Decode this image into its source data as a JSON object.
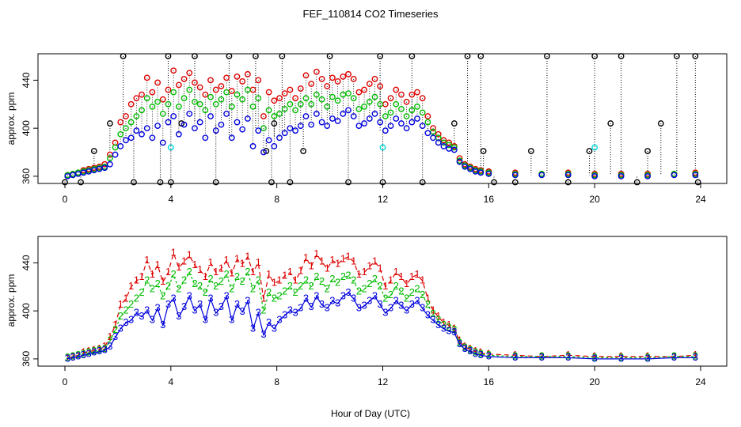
{
  "chart_data": [
    {
      "type": "scatter",
      "title": "FEF_110814  CO2 Timeseries",
      "xlabel": "",
      "ylabel": "approx. ppm",
      "xlim": [
        0,
        24
      ],
      "ylim": [
        354,
        462
      ],
      "xticks": [
        "0",
        "4",
        "8",
        "12",
        "16",
        "20",
        "24"
      ],
      "yticks": [
        "360",
        "400",
        "440"
      ],
      "grid": false,
      "series_colors": [
        "#dd0000",
        "#00bb00",
        "#0000dd"
      ],
      "spike_color": "#000000",
      "cyan_color": "#00dddd",
      "series": [
        {
          "key": "r",
          "x": [
            0.1,
            0.3,
            0.5,
            0.7,
            0.9,
            1.1,
            1.3,
            1.5,
            1.7,
            1.9,
            2.1,
            2.3,
            2.5,
            2.7,
            2.9,
            3.1,
            3.3,
            3.5,
            3.7,
            3.9,
            4.1,
            4.3,
            4.5,
            4.7,
            4.9,
            5.1,
            5.3,
            5.5,
            5.7,
            5.9,
            6.1,
            6.3,
            6.5,
            6.7,
            6.9,
            7.1,
            7.3,
            7.5,
            7.7,
            7.9,
            8.1,
            8.3,
            8.5,
            8.7,
            8.9,
            9.1,
            9.3,
            9.5,
            9.7,
            9.9,
            10.1,
            10.3,
            10.5,
            10.7,
            10.9,
            11.1,
            11.3,
            11.5,
            11.7,
            11.9,
            12.1,
            12.3,
            12.5,
            12.7,
            12.9,
            13.1,
            13.3,
            13.5,
            13.7,
            13.9,
            14.1,
            14.3,
            14.5,
            14.7,
            14.9,
            15.1,
            15.3,
            15.5,
            15.7,
            16.0,
            17.0,
            18.0,
            19.0,
            20.0,
            21.0,
            22.0,
            23.0,
            23.8
          ],
          "values": [
            361,
            362,
            363,
            365,
            366,
            367,
            368,
            370,
            378,
            388,
            405,
            410,
            420,
            425,
            428,
            442,
            430,
            438,
            424,
            432,
            448,
            436,
            441,
            446,
            438,
            434,
            428,
            440,
            432,
            435,
            442,
            431,
            443,
            439,
            445,
            432,
            440,
            410,
            430,
            423,
            425,
            429,
            432,
            425,
            433,
            444,
            437,
            447,
            441,
            435,
            442,
            439,
            443,
            445,
            441,
            430,
            432,
            437,
            441,
            435,
            420,
            425,
            432,
            428,
            422,
            428,
            430,
            425,
            410,
            400,
            395,
            390,
            388,
            385,
            375,
            370,
            368,
            366,
            365,
            364,
            363,
            362,
            363,
            362,
            362,
            362,
            362,
            363
          ]
        },
        {
          "key": "g",
          "x": [
            0.1,
            0.3,
            0.5,
            0.7,
            0.9,
            1.1,
            1.3,
            1.5,
            1.7,
            1.9,
            2.1,
            2.3,
            2.5,
            2.7,
            2.9,
            3.1,
            3.3,
            3.5,
            3.7,
            3.9,
            4.1,
            4.3,
            4.5,
            4.7,
            4.9,
            5.1,
            5.3,
            5.5,
            5.7,
            5.9,
            6.1,
            6.3,
            6.5,
            6.7,
            6.9,
            7.1,
            7.3,
            7.5,
            7.7,
            7.9,
            8.1,
            8.3,
            8.5,
            8.7,
            8.9,
            9.1,
            9.3,
            9.5,
            9.7,
            9.9,
            10.1,
            10.3,
            10.5,
            10.7,
            10.9,
            11.1,
            11.3,
            11.5,
            11.7,
            11.9,
            12.1,
            12.3,
            12.5,
            12.7,
            12.9,
            13.1,
            13.3,
            13.5,
            13.7,
            13.9,
            14.1,
            14.3,
            14.5,
            14.7,
            14.9,
            15.1,
            15.3,
            15.5,
            15.7,
            16.0,
            17.0,
            18.0,
            19.0,
            20.0,
            21.0,
            22.0,
            23.0,
            23.8
          ],
          "values": [
            361,
            362,
            363,
            364,
            365,
            366,
            367,
            368,
            375,
            384,
            395,
            400,
            405,
            410,
            415,
            425,
            418,
            422,
            412,
            420,
            430,
            418,
            425,
            432,
            422,
            420,
            415,
            426,
            420,
            424,
            430,
            418,
            428,
            424,
            432,
            418,
            425,
            400,
            415,
            410,
            412,
            416,
            420,
            415,
            420,
            425,
            420,
            428,
            424,
            418,
            426,
            423,
            428,
            429,
            425,
            416,
            418,
            422,
            426,
            420,
            410,
            413,
            420,
            416,
            410,
            415,
            418,
            413,
            405,
            397,
            392,
            388,
            386,
            384,
            373,
            369,
            367,
            365,
            364,
            363,
            362,
            362,
            362,
            361,
            361,
            361,
            362,
            362
          ]
        },
        {
          "key": "b",
          "x": [
            0.1,
            0.3,
            0.5,
            0.7,
            0.9,
            1.1,
            1.3,
            1.5,
            1.7,
            1.9,
            2.1,
            2.3,
            2.5,
            2.7,
            2.9,
            3.1,
            3.3,
            3.5,
            3.7,
            3.9,
            4.1,
            4.3,
            4.5,
            4.7,
            4.9,
            5.1,
            5.3,
            5.5,
            5.7,
            5.9,
            6.1,
            6.3,
            6.5,
            6.7,
            6.9,
            7.1,
            7.3,
            7.5,
            7.7,
            7.9,
            8.1,
            8.3,
            8.5,
            8.7,
            8.9,
            9.1,
            9.3,
            9.5,
            9.7,
            9.9,
            10.1,
            10.3,
            10.5,
            10.7,
            10.9,
            11.1,
            11.3,
            11.5,
            11.7,
            11.9,
            12.1,
            12.3,
            12.5,
            12.7,
            12.9,
            13.1,
            13.3,
            13.5,
            13.7,
            13.9,
            14.1,
            14.3,
            14.5,
            14.7,
            14.9,
            15.1,
            15.3,
            15.5,
            15.7,
            16.0,
            17.0,
            18.0,
            19.0,
            20.0,
            21.0,
            22.0,
            23.0,
            23.8
          ],
          "values": [
            360,
            361,
            362,
            363,
            364,
            365,
            366,
            367,
            370,
            378,
            385,
            390,
            392,
            398,
            395,
            400,
            392,
            402,
            388,
            405,
            410,
            395,
            403,
            412,
            400,
            405,
            392,
            410,
            398,
            403,
            412,
            392,
            405,
            399,
            408,
            385,
            398,
            380,
            390,
            385,
            392,
            396,
            400,
            398,
            402,
            410,
            403,
            412,
            405,
            402,
            408,
            406,
            412,
            415,
            410,
            402,
            404,
            408,
            412,
            405,
            398,
            402,
            408,
            404,
            400,
            405,
            408,
            402,
            396,
            392,
            388,
            385,
            383,
            382,
            372,
            368,
            366,
            364,
            363,
            362,
            361,
            361,
            361,
            360,
            360,
            360,
            361,
            361
          ]
        }
      ],
      "spikes": {
        "x": [
          0.0,
          0.6,
          1.1,
          1.7,
          2.2,
          2.6,
          3.6,
          3.9,
          4.0,
          4.4,
          4.9,
          5.7,
          6.2,
          7.2,
          7.6,
          7.8,
          7.9,
          8.2,
          8.5,
          9.0,
          10.0,
          10.7,
          11.9,
          12.0,
          13.1,
          13.5,
          14.7,
          15.2,
          15.7,
          15.8,
          16.2,
          17.0,
          17.6,
          18.2,
          19.0,
          19.8,
          20.0,
          20.6,
          21.0,
          21.6,
          22.0,
          22.5,
          23.1,
          23.8,
          23.9
        ],
        "values": [
          355,
          355,
          381,
          404,
          460,
          355,
          355,
          460,
          355,
          404,
          460,
          355,
          460,
          460,
          381,
          355,
          404,
          460,
          355,
          381,
          460,
          355,
          460,
          355,
          460,
          355,
          404,
          460,
          460,
          381,
          355,
          355,
          381,
          460,
          355,
          381,
          460,
          404,
          460,
          355,
          381,
          404,
          460,
          460,
          355
        ]
      },
      "cyan": {
        "x": [
          4.0,
          12.0,
          20.0
        ],
        "values": [
          384,
          384,
          384
        ]
      }
    },
    {
      "type": "line",
      "title": "",
      "xlabel": "Hour of Day (UTC)",
      "ylabel": "approx. ppm",
      "xlim": [
        0,
        24
      ],
      "ylim": [
        354,
        462
      ],
      "xticks": [
        "0",
        "4",
        "8",
        "12",
        "16",
        "20",
        "24"
      ],
      "yticks": [
        "360",
        "400",
        "440"
      ],
      "grid": false,
      "series_labels": [
        "1",
        "2",
        "3"
      ],
      "series_colors": [
        "#dd0000",
        "#00bb00",
        "#0000dd"
      ]
    }
  ]
}
